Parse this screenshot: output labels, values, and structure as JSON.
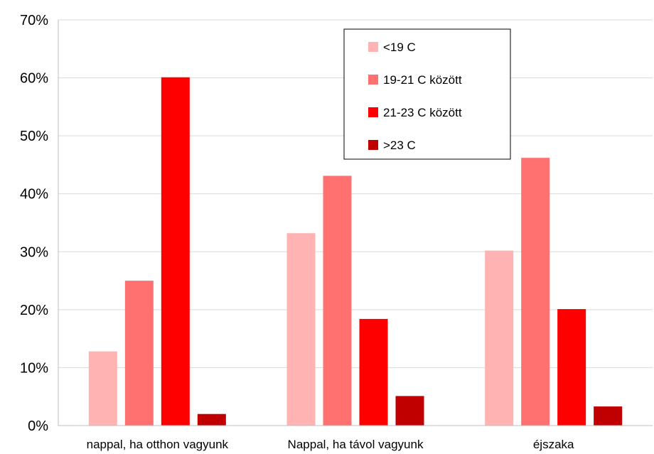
{
  "chart_data": {
    "type": "bar",
    "title": "",
    "xlabel": "",
    "ylabel": "",
    "ylim": [
      0,
      70
    ],
    "y_ticks": [
      0,
      10,
      20,
      30,
      40,
      50,
      60,
      70
    ],
    "y_tick_labels": [
      "0%",
      "10%",
      "20%",
      "30%",
      "40%",
      "50%",
      "60%",
      "70%"
    ],
    "grid": true,
    "legend_position": "top-center",
    "categories": [
      "nappal, ha otthon vagyunk",
      "Nappal, ha távol vagyunk",
      "éjszaka"
    ],
    "series": [
      {
        "name": "<19 C",
        "color": "#ffb3b3",
        "values": [
          12.8,
          33.2,
          30.2
        ]
      },
      {
        "name": "19-21 C között",
        "color": "#ff7070",
        "values": [
          25.0,
          43.1,
          46.2
        ]
      },
      {
        "name": "21-23 C között",
        "color": "#ff0000",
        "values": [
          60.1,
          18.4,
          20.1
        ]
      },
      {
        "name": ">23 C",
        "color": "#c00000",
        "values": [
          2.0,
          5.1,
          3.3
        ]
      }
    ]
  }
}
